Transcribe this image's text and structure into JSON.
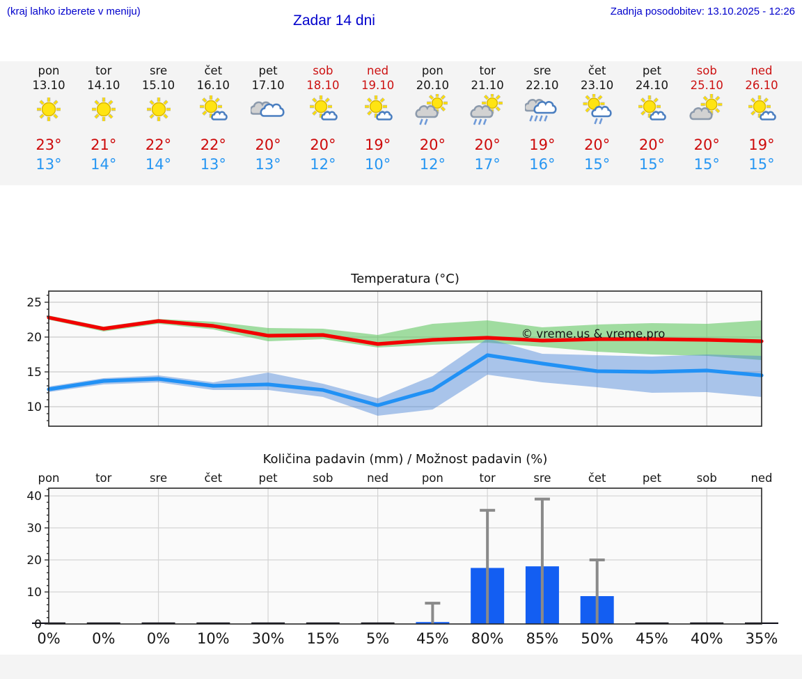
{
  "header": {
    "location_note": "(kraj lahko izberete v meniju)",
    "title": "Zadar 14 dni",
    "last_update": "Zadnja posodobitev: 13.10.2025 - 12:26"
  },
  "colors": {
    "accent_blue": "#0000cc",
    "high_temp": "#cd0a0a",
    "low_temp": "#2696f2",
    "weekend_red": "#cc1111",
    "bar_blue": "#135ef2",
    "red_line": "#f20000",
    "blue_line": "#2191f5",
    "green_band": "#64c864",
    "blue_band": "#4882d6",
    "whisker_gray": "#8a8a8a"
  },
  "forecast": {
    "days": [
      {
        "name": "pon",
        "date": "13.10",
        "weekend": false,
        "icon": "sun",
        "high": "23°",
        "low": "13°"
      },
      {
        "name": "tor",
        "date": "14.10",
        "weekend": false,
        "icon": "sun",
        "high": "21°",
        "low": "14°"
      },
      {
        "name": "sre",
        "date": "15.10",
        "weekend": false,
        "icon": "sun",
        "high": "22°",
        "low": "14°"
      },
      {
        "name": "čet",
        "date": "16.10",
        "weekend": false,
        "icon": "sun-cloud",
        "high": "22°",
        "low": "13°"
      },
      {
        "name": "pet",
        "date": "17.10",
        "weekend": false,
        "icon": "clouds",
        "high": "20°",
        "low": "13°"
      },
      {
        "name": "sob",
        "date": "18.10",
        "weekend": true,
        "icon": "sun-cloud",
        "high": "20°",
        "low": "12°"
      },
      {
        "name": "ned",
        "date": "19.10",
        "weekend": true,
        "icon": "sun-cloud",
        "high": "19°",
        "low": "10°"
      },
      {
        "name": "pon",
        "date": "20.10",
        "weekend": false,
        "icon": "cloud-sun-rain-2",
        "high": "20°",
        "low": "12°"
      },
      {
        "name": "tor",
        "date": "21.10",
        "weekend": false,
        "icon": "cloud-sun-rain-3",
        "high": "20°",
        "low": "17°"
      },
      {
        "name": "sre",
        "date": "22.10",
        "weekend": false,
        "icon": "clouds-rain-4",
        "high": "19°",
        "low": "16°"
      },
      {
        "name": "čet",
        "date": "23.10",
        "weekend": false,
        "icon": "sun-cloud-rain-2",
        "high": "20°",
        "low": "15°"
      },
      {
        "name": "pet",
        "date": "24.10",
        "weekend": false,
        "icon": "sun-cloud",
        "high": "20°",
        "low": "15°"
      },
      {
        "name": "sob",
        "date": "25.10",
        "weekend": true,
        "icon": "cloud-sun",
        "high": "20°",
        "low": "15°"
      },
      {
        "name": "ned",
        "date": "26.10",
        "weekend": true,
        "icon": "sun-cloud",
        "high": "19°",
        "low": "15°"
      }
    ]
  },
  "chart_data": [
    {
      "type": "line",
      "title": "Temperatura (°C)",
      "watermark": "© vreme.us & vreme.pro",
      "x": [
        "13.10",
        "14.10",
        "15.10",
        "16.10",
        "17.10",
        "18.10",
        "19.10",
        "20.10",
        "21.10",
        "22.10",
        "23.10",
        "24.10",
        "25.10",
        "26.10"
      ],
      "ylim": [
        7.2,
        26.6
      ],
      "yticks": [
        10,
        15,
        20,
        25
      ],
      "grid_day_indices": [
        2,
        4,
        6,
        8,
        10,
        12
      ],
      "legend_position": "none",
      "series": [
        {
          "name": "max temperature (°C)",
          "values": [
            22.8,
            21.2,
            22.3,
            21.6,
            20.2,
            20.3,
            19.0,
            19.6,
            19.9,
            19.5,
            19.7,
            19.7,
            19.6,
            19.4
          ],
          "band_hi": [
            23.1,
            21.5,
            22.6,
            22.2,
            21.3,
            21.2,
            20.3,
            21.9,
            22.4,
            21.4,
            21.8,
            22.0,
            21.9,
            22.4
          ],
          "band_lo": [
            22.5,
            20.8,
            21.9,
            21.1,
            19.4,
            19.7,
            18.5,
            18.9,
            19.2,
            18.6,
            17.9,
            17.5,
            17.3,
            16.7
          ]
        },
        {
          "name": "min temperature (°C)",
          "values": [
            12.5,
            13.7,
            14.0,
            13.0,
            13.2,
            12.4,
            10.2,
            12.4,
            17.4,
            16.2,
            15.1,
            15.0,
            15.2,
            14.5
          ],
          "band_hi": [
            12.9,
            14.1,
            14.5,
            13.5,
            14.9,
            13.3,
            11.2,
            14.4,
            19.8,
            17.6,
            17.4,
            17.2,
            17.5,
            17.3
          ],
          "band_lo": [
            12.1,
            13.2,
            13.5,
            12.4,
            12.4,
            11.4,
            8.7,
            9.6,
            14.6,
            13.5,
            12.8,
            12.0,
            12.1,
            11.4
          ]
        }
      ]
    },
    {
      "type": "bar",
      "title": "Količina padavin (mm) / Možnost padavin (%)",
      "categories": [
        "pon",
        "tor",
        "sre",
        "čet",
        "pet",
        "sob",
        "ned",
        "pon",
        "tor",
        "sre",
        "čet",
        "pet",
        "sob",
        "ned"
      ],
      "values": [
        0,
        0,
        0,
        0,
        0,
        0,
        0,
        0.6,
        17.5,
        18,
        8.7,
        0,
        0,
        0
      ],
      "whisker_max": [
        null,
        null,
        null,
        null,
        null,
        null,
        null,
        6.5,
        35.5,
        39,
        20,
        null,
        null,
        null
      ],
      "probabilities": [
        "0%",
        "0%",
        "0%",
        "10%",
        "30%",
        "15%",
        "5%",
        "45%",
        "80%",
        "85%",
        "50%",
        "45%",
        "40%",
        "35%"
      ],
      "probability_colors": [
        "#63d6e8",
        "#63d6e8",
        "#63d6e8",
        "#2f8cc9",
        "#2a7fc4",
        "#3292cd",
        "#63d6e8",
        "#3d9ad6",
        "#1e63bd",
        "#1c5ebb",
        "#2064be",
        "#3a97d3",
        "#3e9cd6",
        "#42a0d8"
      ],
      "ylim": [
        0,
        42.4
      ],
      "yticks": [
        0,
        10,
        20,
        30,
        40
      ],
      "grid_day_indices": [
        2,
        4,
        6,
        8,
        10,
        12
      ],
      "ylabel": "",
      "xlabel": ""
    }
  ]
}
